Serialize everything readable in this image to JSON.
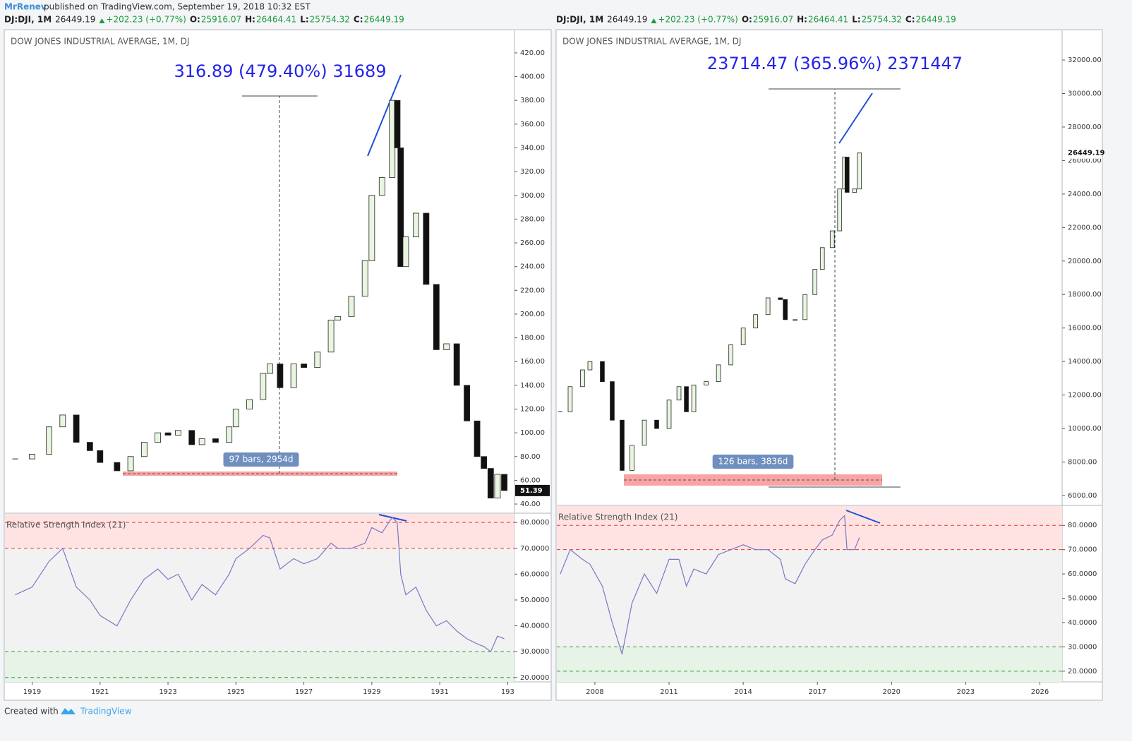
{
  "header": {
    "author": "MrRenev",
    "published": "published on TradingView.com, September 19, 2018 10:32 EST"
  },
  "quote": {
    "symbol": "DJ:DJI, 1M",
    "last": "26449.19",
    "change": "+202.23 (+0.77%)",
    "o_label": "O:",
    "o": "25916.07",
    "h_label": "H:",
    "h": "26464.41",
    "l_label": "L:",
    "l": "25754.32",
    "c_label": "C:",
    "c": "26449.19"
  },
  "chart_data": [
    {
      "type": "candlestick",
      "title": "DOW JONES INDUSTRIAL AVERAGE, 1M, DJ",
      "measure_label": "316.89 (479.40%) 31689",
      "range_label": "97 bars, 2954d",
      "last_price": 51.39,
      "x": [
        1918.5,
        1919.0,
        1919.5,
        1919.9,
        1920.3,
        1920.7,
        1921.0,
        1921.5,
        1921.9,
        1922.3,
        1922.7,
        1923.0,
        1923.3,
        1923.7,
        1924.0,
        1924.4,
        1924.8,
        1925.0,
        1925.4,
        1925.8,
        1926.0,
        1926.3,
        1926.7,
        1927.0,
        1927.4,
        1927.8,
        1928.0,
        1928.4,
        1928.8,
        1929.0,
        1929.3,
        1929.6,
        1929.75,
        1929.85,
        1930.0,
        1930.3,
        1930.6,
        1930.9,
        1931.2,
        1931.5,
        1931.8,
        1932.1,
        1932.3,
        1932.5,
        1932.7,
        1932.9
      ],
      "values": [
        78,
        82,
        105,
        115,
        92,
        85,
        75,
        68,
        80,
        92,
        100,
        98,
        102,
        90,
        95,
        92,
        105,
        120,
        128,
        150,
        158,
        138,
        158,
        155,
        168,
        195,
        198,
        215,
        245,
        300,
        315,
        380,
        340,
        240,
        265,
        285,
        225,
        170,
        175,
        140,
        110,
        80,
        70,
        45,
        65,
        51.39
      ],
      "xlim": [
        1918.2,
        1933.2
      ],
      "xticks": [
        1919,
        1921,
        1923,
        1925,
        1927,
        1929,
        1931,
        {
          "value": 1933,
          "label": "193"
        }
      ],
      "ylim": [
        32.3,
        439
      ],
      "yticks": [
        {
          "value": 40,
          "label": "40.00"
        },
        {
          "value": 60,
          "label": "60.00"
        },
        {
          "value": 80,
          "label": "80.00"
        },
        {
          "value": 100,
          "label": "100.00"
        },
        {
          "value": 120,
          "label": "120.00"
        },
        {
          "value": 140,
          "label": "140.00"
        },
        {
          "value": 160,
          "label": "160.00"
        },
        {
          "value": 180,
          "label": "180.00"
        },
        {
          "value": 200,
          "label": "200.00"
        },
        {
          "value": 220,
          "label": "220.00"
        },
        {
          "value": 240,
          "label": "240.00"
        },
        {
          "value": 260,
          "label": "260.00"
        },
        {
          "value": 280,
          "label": "280.00"
        },
        {
          "value": 300,
          "label": "300.00"
        },
        {
          "value": 320,
          "label": "320.00"
        },
        {
          "value": 340,
          "label": "340.00"
        },
        {
          "value": 360,
          "label": "360.00"
        },
        {
          "value": 380,
          "label": "380.00"
        },
        {
          "value": 400,
          "label": "400.00"
        },
        {
          "value": 420,
          "label": "420.00"
        }
      ],
      "rsi": {
        "title": "Relative Strength Index (21)",
        "color": "#7b77c4",
        "values": [
          52,
          55,
          65,
          70,
          55,
          50,
          44,
          40,
          50,
          58,
          62,
          58,
          60,
          50,
          56,
          52,
          60,
          66,
          70,
          75,
          74,
          62,
          66,
          64,
          66,
          72,
          70,
          70,
          72,
          78,
          76,
          82,
          80,
          60,
          52,
          55,
          46,
          40,
          42,
          38,
          35,
          33,
          32,
          30,
          36,
          35
        ],
        "ylim": [
          18.3,
          83.6
        ],
        "levels": [
          80,
          70,
          30,
          20
        ],
        "yticks": [
          {
            "value": 20,
            "label": "20.0000"
          },
          {
            "value": 30,
            "label": "30.0000"
          },
          {
            "value": 40,
            "label": "40.0000"
          },
          {
            "value": 50,
            "label": "50.0000"
          },
          {
            "value": 60,
            "label": "60.0000"
          },
          {
            "value": 70,
            "label": "70.0000"
          },
          {
            "value": 80,
            "label": "80.0000"
          }
        ]
      }
    },
    {
      "type": "candlestick",
      "title": "DOW JONES INDUSTRIAL AVERAGE, 1M, DJ",
      "measure_label": "23714.47 (365.96%) 2371447",
      "range_label": "126 bars, 3836d",
      "last_price": 26449.19,
      "x": [
        2006.6,
        2007.0,
        2007.5,
        2007.8,
        2008.3,
        2008.7,
        2009.1,
        2009.5,
        2010.0,
        2010.5,
        2011.0,
        2011.4,
        2011.7,
        2012.0,
        2012.5,
        2013.0,
        2013.5,
        2014.0,
        2014.5,
        2015.0,
        2015.5,
        2015.7,
        2016.1,
        2016.5,
        2016.9,
        2017.2,
        2017.6,
        2017.9,
        2018.1,
        2018.2,
        2018.5,
        2018.7
      ],
      "values": [
        11000,
        12500,
        13500,
        14000,
        12800,
        10500,
        7500,
        9000,
        10500,
        10000,
        11700,
        12500,
        11000,
        12600,
        12800,
        13800,
        15000,
        16000,
        16800,
        17800,
        17700,
        16500,
        16500,
        18000,
        19500,
        20800,
        21800,
        24300,
        26200,
        24100,
        24300,
        26449.19
      ],
      "xlim": [
        2006.46,
        2026.9
      ],
      "xticks": [
        2008,
        2011,
        2014,
        2017,
        2020,
        2023,
        2026
      ],
      "ylim": [
        5410,
        33770
      ],
      "yticks": [
        {
          "value": 6000,
          "label": "6000.00"
        },
        {
          "value": 8000,
          "label": "8000.00"
        },
        {
          "value": 10000,
          "label": "10000.00"
        },
        {
          "value": 12000,
          "label": "12000.00"
        },
        {
          "value": 14000,
          "label": "14000.00"
        },
        {
          "value": 16000,
          "label": "16000.00"
        },
        {
          "value": 18000,
          "label": "18000.00"
        },
        {
          "value": 20000,
          "label": "20000.00"
        },
        {
          "value": 22000,
          "label": "22000.00"
        },
        {
          "value": 24000,
          "label": "24000.00"
        },
        {
          "value": 26000,
          "label": "26000.00"
        },
        {
          "value": 28000,
          "label": "28000.00"
        },
        {
          "value": 30000,
          "label": "30000.00"
        },
        {
          "value": 32000,
          "label": "32000.00"
        }
      ],
      "rsi": {
        "title": "Relative Strength Index (21)",
        "color": "#7b77c4",
        "values": [
          60,
          70,
          66,
          64,
          55,
          40,
          27,
          48,
          60,
          52,
          66,
          66,
          55,
          62,
          60,
          68,
          70,
          72,
          70,
          70,
          66,
          58,
          56,
          64,
          70,
          74,
          76,
          82,
          84,
          70,
          70,
          75
        ],
        "ylim": [
          15.6,
          88.2
        ],
        "levels": [
          80,
          70,
          30,
          20
        ],
        "yticks": [
          {
            "value": 20,
            "label": "20.0000"
          },
          {
            "value": 30,
            "label": "30.0000"
          },
          {
            "value": 40,
            "label": "40.0000"
          },
          {
            "value": 50,
            "label": "50.0000"
          },
          {
            "value": 60,
            "label": "60.0000"
          },
          {
            "value": 70,
            "label": "70.0000"
          },
          {
            "value": 80,
            "label": "80.0000"
          }
        ]
      }
    }
  ],
  "footer": {
    "created": "Created with",
    "brand": "TradingView"
  }
}
